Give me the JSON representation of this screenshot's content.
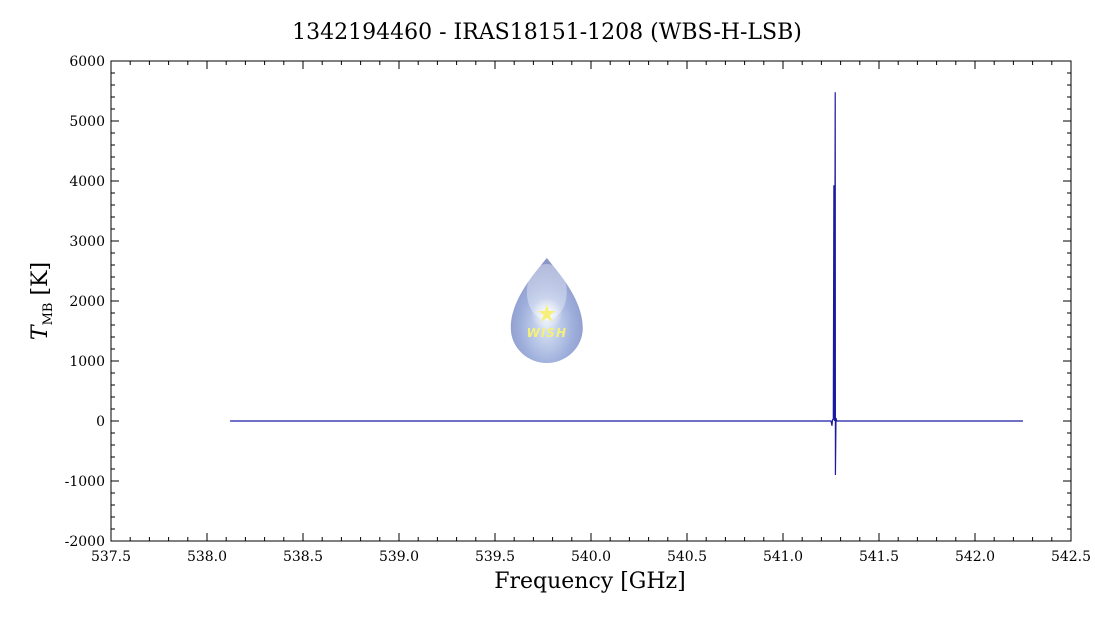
{
  "chart_data": {
    "type": "line",
    "title": "1342194460 - IRAS18151-1208 (WBS-H-LSB)",
    "xlabel": "Frequency [GHz]",
    "ylabel_main": "T",
    "ylabel_sub": "MB",
    "ylabel_unit": " [K]",
    "xlim": [
      537.5,
      542.5
    ],
    "ylim": [
      -2000,
      6000
    ],
    "xticks": [
      "537.5",
      "538.0",
      "538.5",
      "539.0",
      "539.5",
      "540.0",
      "540.5",
      "541.0",
      "541.5",
      "542.0",
      "542.5"
    ],
    "yticks": [
      "6000",
      "5000",
      "4000",
      "3000",
      "2000",
      "1000",
      "0",
      "-1000",
      "-2000"
    ],
    "grid": false,
    "line_color": "#1a1aa0",
    "series": [
      {
        "points": [
          [
            538.12,
            0
          ],
          [
            541.25,
            0
          ],
          [
            541.255,
            -80
          ],
          [
            541.258,
            20
          ],
          [
            541.262,
            30
          ],
          [
            541.265,
            3930
          ],
          [
            541.268,
            0
          ],
          [
            541.272,
            5480
          ],
          [
            541.273,
            -900
          ],
          [
            541.276,
            50
          ],
          [
            541.28,
            0
          ],
          [
            542.25,
            0
          ]
        ]
      }
    ],
    "logo": {
      "name": "wish-logo",
      "text": "WISH",
      "x": 539.77,
      "y": 1850
    }
  }
}
